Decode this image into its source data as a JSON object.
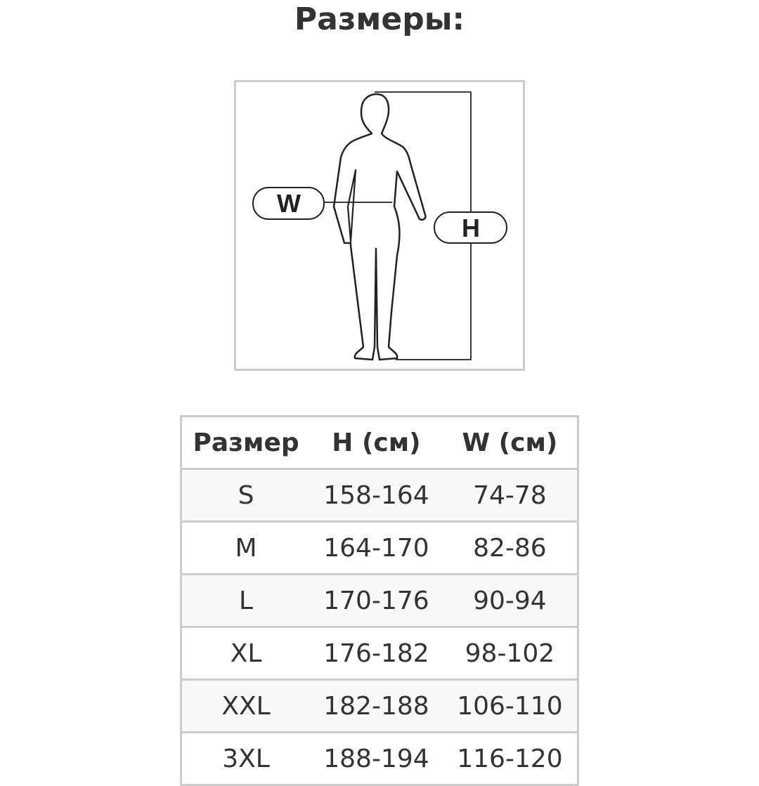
{
  "title": "Размеры:",
  "figure": {
    "waist_label": "W",
    "height_label": "H"
  },
  "table": {
    "headers": [
      "Размер",
      "H (см)",
      "W (см)"
    ],
    "rows": [
      [
        "S",
        "158-164",
        "74-78"
      ],
      [
        "M",
        "164-170",
        "82-86"
      ],
      [
        "L",
        "170-176",
        "90-94"
      ],
      [
        "XL",
        "176-182",
        "98-102"
      ],
      [
        "XXL",
        "182-188",
        "106-110"
      ],
      [
        "3XL",
        "188-194",
        "116-120"
      ]
    ]
  }
}
